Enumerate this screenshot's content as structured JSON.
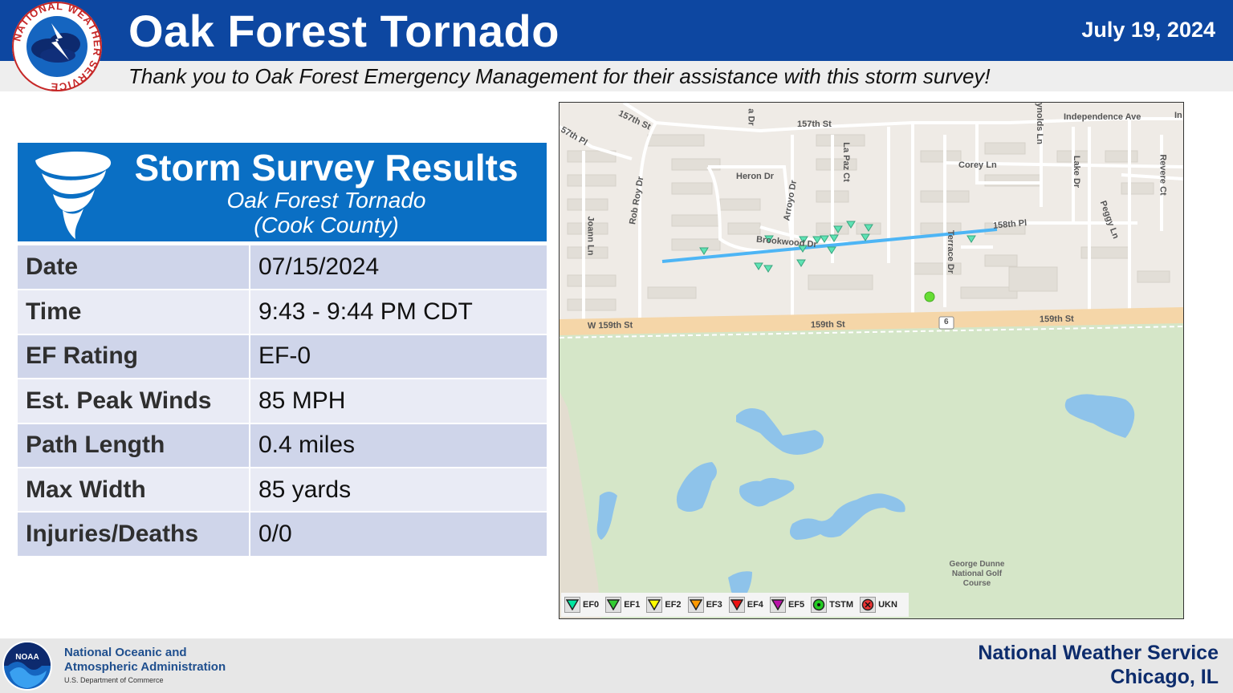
{
  "header": {
    "title": "Oak Forest Tornado",
    "date": "July 19, 2024",
    "thanks": "Thank you to Oak Forest Emergency Management for their assistance with this storm survey!",
    "logo_text": "NATIONAL WEATHER SERVICE",
    "logo_icon": "nws-logo-icon",
    "colors": {
      "bar": "#0d47a1",
      "band": "#eeeeee"
    }
  },
  "results": {
    "title": "Storm Survey Results",
    "subtitle_line1": "Oak Forest Tornado",
    "subtitle_line2": "(Cook County)",
    "icon": "tornado-icon",
    "rows": [
      {
        "label": "Date",
        "value": "07/15/2024"
      },
      {
        "label": "Time",
        "value": "9:43 - 9:44 PM CDT"
      },
      {
        "label": "EF Rating",
        "value": "EF-0"
      },
      {
        "label": "Est. Peak Winds",
        "value": "85 MPH"
      },
      {
        "label": "Path Length",
        "value": "0.4 miles"
      },
      {
        "label": "Max Width",
        "value": "85 yards"
      },
      {
        "label": "Injuries/Deaths",
        "value": "0/0"
      }
    ],
    "colors": {
      "header": "#0a6fc4",
      "row_odd": "#cfd5ea",
      "row_even": "#e9ebf5"
    }
  },
  "map": {
    "streets": {
      "s157a": "157th St",
      "s157b": "157th St",
      "s157pl": "57th Pl",
      "independence": "Independence Ave",
      "in_cut": "In",
      "heron": "Heron Dr",
      "corey": "Corey Ln",
      "lapaz": "La Paz Ct",
      "arroyo": "Arroyo Dr",
      "robroy": "Rob Roy Dr",
      "joann": "Joann Ln",
      "brookwood": "Brookwood Dr",
      "terrace": "Terrace Dr",
      "pl158": "158th Pl",
      "lake": "Lake Dr",
      "revere": "Revere Ct",
      "peggy": "Peggy Ln",
      "reynolds": "ynolds Ln",
      "ra": "a Dr",
      "w159": "W 159th St",
      "s159a": "159th St",
      "s159b": "159th St",
      "route": "6"
    },
    "golf_label": [
      "George Dunne",
      "National Golf",
      "Course"
    ],
    "colors": {
      "urban": "#efebe6",
      "park": "#d5e6c8",
      "water": "#8ec3ea",
      "arterial": "#f5d6a8",
      "track": "#4db5f5",
      "ef0_marker": "#5ee3b4",
      "tstm_marker": "#33dd22"
    },
    "legend": [
      {
        "label": "EF0",
        "color": "#00e5a0",
        "icon": "triangle-down-icon"
      },
      {
        "label": "EF1",
        "color": "#33cc33",
        "icon": "triangle-down-icon"
      },
      {
        "label": "EF2",
        "color": "#ffff00",
        "icon": "triangle-down-icon"
      },
      {
        "label": "EF3",
        "color": "#ff9900",
        "icon": "triangle-down-icon"
      },
      {
        "label": "EF4",
        "color": "#ee1111",
        "icon": "triangle-down-icon"
      },
      {
        "label": "EF5",
        "color": "#bb11aa",
        "icon": "triangle-down-icon"
      },
      {
        "label": "TSTM",
        "color": "#22cc22",
        "icon": "circle-dot-icon"
      },
      {
        "label": "UKN",
        "color": "#ee3333",
        "icon": "circle-x-icon"
      }
    ]
  },
  "footer": {
    "noaa_line1": "National Oceanic and",
    "noaa_line2": "Atmospheric Administration",
    "noaa_dept": "U.S. Department of Commerce",
    "noaa_logo_text": "NOAA",
    "nws_name": "National Weather Service",
    "nws_location": "Chicago, IL"
  }
}
